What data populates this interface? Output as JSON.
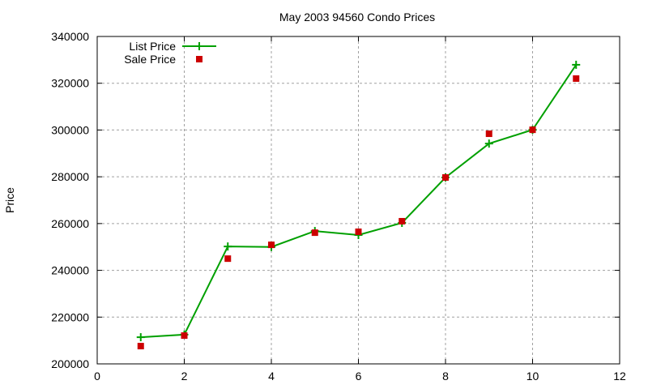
{
  "chart_data": {
    "type": "line",
    "title": "May 2003 94560 Condo Prices",
    "xlabel": "",
    "ylabel": "Price",
    "xlim": [
      0,
      12
    ],
    "ylim": [
      200000,
      340000
    ],
    "x_ticks": [
      0,
      2,
      4,
      6,
      8,
      10,
      12
    ],
    "y_ticks": [
      200000,
      220000,
      240000,
      260000,
      280000,
      300000,
      320000,
      340000
    ],
    "grid": true,
    "legend_position": "top-left",
    "x": [
      1,
      2,
      3,
      4,
      5,
      6,
      7,
      8,
      9,
      10,
      11
    ],
    "series": [
      {
        "name": "List Price",
        "style": "linespoints",
        "marker": "plus",
        "color": "#00a000",
        "values": [
          211400,
          212500,
          250200,
          250000,
          256800,
          255100,
          260300,
          279700,
          294200,
          300100,
          327900
        ]
      },
      {
        "name": "Sale Price",
        "style": "points",
        "marker": "square",
        "color": "#cc0000",
        "values": [
          207600,
          212100,
          245000,
          250900,
          256100,
          256500,
          261000,
          279700,
          298400,
          300100,
          322000
        ]
      }
    ]
  }
}
